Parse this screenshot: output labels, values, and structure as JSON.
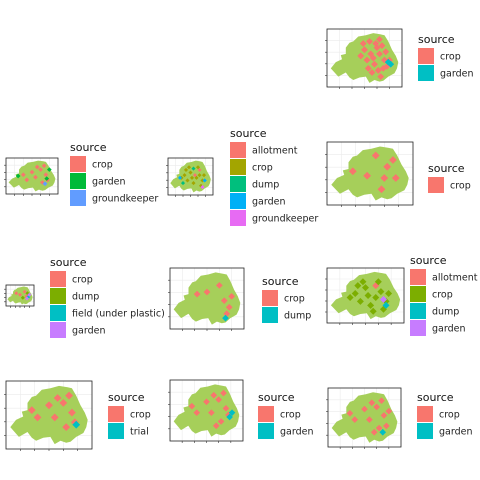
{
  "chart_data": [
    {
      "type": "scatter",
      "legend": {
        "title": "source",
        "entries": [
          {
            "label": "crop",
            "color": "#F8766D"
          },
          {
            "label": "garden",
            "color": "#00BFC4"
          }
        ]
      },
      "series": [
        {
          "name": "crop",
          "points": [
            [
              -6.1,
              54.95
            ],
            [
              -6.2,
              55.1
            ],
            [
              -6.55,
              54.75
            ],
            [
              -6.0,
              54.6
            ],
            [
              -6.4,
              54.5
            ],
            [
              -6.8,
              54.85
            ],
            [
              -6.25,
              54.35
            ],
            [
              -5.9,
              54.45
            ],
            [
              -6.6,
              55.05
            ],
            [
              -6.95,
              54.7
            ],
            [
              -6.3,
              54.9
            ],
            [
              -5.95,
              54.8
            ],
            [
              -6.45,
              54.65
            ],
            [
              -6.15,
              54.2
            ],
            [
              -6.7,
              54.6
            ],
            [
              -6.05,
              54.4
            ],
            [
              -6.35,
              55.0
            ],
            [
              -6.85,
              55.0
            ],
            [
              -6.5,
              54.3
            ],
            [
              -5.8,
              54.6
            ],
            [
              -6.2,
              54.75
            ],
            [
              -6.65,
              54.4
            ]
          ]
        },
        {
          "name": "garden",
          "points": [
            [
              -5.85,
              54.55
            ],
            [
              -5.75,
              54.5
            ]
          ]
        }
      ]
    },
    {
      "type": "scatter",
      "legend": {
        "title": "source",
        "entries": [
          {
            "label": "crop",
            "color": "#F8766D"
          },
          {
            "label": "garden",
            "color": "#00BA38"
          },
          {
            "label": "groundkeeper",
            "color": "#619CFF"
          }
        ]
      },
      "series": [
        {
          "name": "crop",
          "points": [
            [
              -6.3,
              54.9
            ],
            [
              -6.0,
              54.7
            ],
            [
              -6.6,
              54.6
            ],
            [
              -6.8,
              54.8
            ],
            [
              -5.9,
              54.5
            ],
            [
              -6.2,
              54.4
            ],
            [
              -7.1,
              54.5
            ],
            [
              -6.5,
              55.0
            ],
            [
              -6.1,
              55.05
            ],
            [
              -7.3,
              54.7
            ]
          ]
        },
        {
          "name": "garden",
          "points": [
            [
              -7.6,
              54.65
            ],
            [
              -5.8,
              54.9
            ],
            [
              -5.95,
              54.55
            ]
          ]
        },
        {
          "name": "groundkeeper",
          "points": [
            [
              -6.05,
              54.35
            ]
          ]
        }
      ]
    },
    {
      "type": "scatter",
      "legend": {
        "title": "source",
        "entries": [
          {
            "label": "allotment",
            "color": "#F8766D"
          },
          {
            "label": "crop",
            "color": "#A3A500"
          },
          {
            "label": "dump",
            "color": "#00BF7D"
          },
          {
            "label": "garden",
            "color": "#00B0F6"
          },
          {
            "label": "groundkeeper",
            "color": "#E76BF3"
          }
        ]
      },
      "series": [
        {
          "name": "allotment",
          "points": [
            [
              -6.2,
              54.9
            ],
            [
              -6.5,
              54.7
            ]
          ]
        },
        {
          "name": "crop",
          "points": [
            [
              -7.2,
              54.7
            ],
            [
              -7.0,
              54.5
            ],
            [
              -6.8,
              54.8
            ],
            [
              -6.6,
              54.4
            ],
            [
              -6.4,
              54.6
            ],
            [
              -6.2,
              54.7
            ],
            [
              -6.0,
              54.5
            ],
            [
              -7.4,
              54.6
            ],
            [
              -6.9,
              55.0
            ],
            [
              -6.3,
              55.0
            ],
            [
              -6.1,
              54.3
            ],
            [
              -7.1,
              54.9
            ],
            [
              -6.7,
              54.6
            ],
            [
              -5.9,
              54.7
            ]
          ]
        },
        {
          "name": "dump",
          "points": [
            [
              -6.6,
              54.95
            ],
            [
              -7.3,
              54.4
            ]
          ]
        },
        {
          "name": "garden",
          "points": [
            [
              -7.5,
              54.6
            ],
            [
              -5.85,
              54.5
            ]
          ]
        },
        {
          "name": "groundkeeper",
          "points": [
            [
              -6.0,
              54.25
            ]
          ]
        }
      ]
    },
    {
      "type": "scatter",
      "legend": {
        "title": "source",
        "entries": [
          {
            "label": "crop",
            "color": "#F8766D"
          }
        ]
      },
      "series": [
        {
          "name": "crop",
          "points": [
            [
              -6.2,
              54.8
            ],
            [
              -6.9,
              54.6
            ],
            [
              -6.4,
              54.3
            ],
            [
              -6.0,
              54.95
            ],
            [
              -5.9,
              54.55
            ],
            [
              -7.4,
              54.7
            ],
            [
              -6.6,
              55.05
            ],
            [
              -6.3,
              54.55
            ]
          ]
        }
      ]
    },
    {
      "type": "scatter",
      "legend": {
        "title": "source",
        "entries": [
          {
            "label": "crop",
            "color": "#F8766D"
          },
          {
            "label": "dump",
            "color": "#7CAE00"
          },
          {
            "label": "field (under plastic)",
            "color": "#00BFC4"
          },
          {
            "label": "garden",
            "color": "#C77CFF"
          }
        ]
      },
      "series": [
        {
          "name": "crop",
          "points": [
            [
              -6.3,
              54.9
            ],
            [
              -6.8,
              54.7
            ],
            [
              -6.1,
              54.6
            ],
            [
              -7.2,
              54.8
            ]
          ]
        },
        {
          "name": "dump",
          "points": [
            [
              -6.5,
              54.5
            ],
            [
              -6.0,
              54.8
            ]
          ]
        },
        {
          "name": "field (under plastic)",
          "points": [
            [
              -5.9,
              54.55
            ]
          ]
        },
        {
          "name": "garden",
          "points": [
            [
              -5.8,
              54.7
            ],
            [
              -6.05,
              54.45
            ]
          ]
        }
      ]
    },
    {
      "type": "scatter",
      "legend": {
        "title": "source",
        "entries": [
          {
            "label": "crop",
            "color": "#F8766D"
          },
          {
            "label": "dump",
            "color": "#00BFC4"
          }
        ]
      },
      "series": [
        {
          "name": "crop",
          "points": [
            [
              -6.3,
              54.95
            ],
            [
              -6.1,
              54.6
            ],
            [
              -6.8,
              54.8
            ],
            [
              -5.9,
              54.45
            ],
            [
              -6.0,
              54.3
            ],
            [
              -5.8,
              54.7
            ],
            [
              -7.2,
              54.75
            ]
          ]
        },
        {
          "name": "dump",
          "points": [
            [
              -6.05,
              54.2
            ]
          ]
        }
      ]
    },
    {
      "type": "scatter",
      "legend": {
        "title": "source",
        "entries": [
          {
            "label": "allotment",
            "color": "#F8766D"
          },
          {
            "label": "crop",
            "color": "#7CAE00"
          },
          {
            "label": "dump",
            "color": "#00BFC4"
          },
          {
            "label": "garden",
            "color": "#C77CFF"
          }
        ]
      },
      "series": [
        {
          "name": "allotment",
          "points": [
            [
              -6.4,
              54.9
            ]
          ]
        },
        {
          "name": "crop",
          "points": [
            [
              -7.2,
              54.7
            ],
            [
              -7.0,
              54.5
            ],
            [
              -6.8,
              54.85
            ],
            [
              -6.6,
              54.4
            ],
            [
              -6.4,
              54.6
            ],
            [
              -6.2,
              54.75
            ],
            [
              -6.0,
              54.5
            ],
            [
              -7.4,
              54.6
            ],
            [
              -6.9,
              55.0
            ],
            [
              -6.3,
              55.0
            ],
            [
              -6.1,
              54.3
            ],
            [
              -7.1,
              54.9
            ],
            [
              -6.7,
              54.65
            ],
            [
              -5.9,
              54.7
            ],
            [
              -6.5,
              54.25
            ]
          ]
        },
        {
          "name": "dump",
          "points": [
            [
              -6.0,
              54.4
            ]
          ]
        },
        {
          "name": "garden",
          "points": [
            [
              -6.1,
              54.55
            ]
          ]
        }
      ]
    },
    {
      "type": "scatter",
      "legend": {
        "title": "source",
        "entries": [
          {
            "label": "crop",
            "color": "#F8766D"
          },
          {
            "label": "trial",
            "color": "#00BFC4"
          }
        ]
      },
      "series": [
        {
          "name": "crop",
          "points": [
            [
              -6.3,
              54.9
            ],
            [
              -6.0,
              54.7
            ],
            [
              -6.6,
              54.6
            ],
            [
              -6.8,
              54.85
            ],
            [
              -5.9,
              54.5
            ],
            [
              -6.2,
              54.4
            ],
            [
              -7.2,
              54.6
            ],
            [
              -6.5,
              55.0
            ],
            [
              -6.1,
              55.05
            ],
            [
              -7.4,
              54.75
            ]
          ]
        },
        {
          "name": "trial",
          "points": [
            [
              -5.85,
              54.45
            ]
          ]
        }
      ]
    },
    {
      "type": "scatter",
      "legend": {
        "title": "source",
        "entries": [
          {
            "label": "crop",
            "color": "#F8766D"
          },
          {
            "label": "garden",
            "color": "#00BFC4"
          }
        ]
      },
      "series": [
        {
          "name": "crop",
          "points": [
            [
              -6.3,
              54.9
            ],
            [
              -6.0,
              54.7
            ],
            [
              -6.6,
              54.6
            ],
            [
              -6.8,
              54.85
            ],
            [
              -6.2,
              54.4
            ],
            [
              -7.2,
              54.6
            ],
            [
              -6.5,
              55.0
            ],
            [
              -6.1,
              55.05
            ],
            [
              -7.4,
              54.75
            ],
            [
              -6.4,
              54.3
            ],
            [
              -5.9,
              54.55
            ]
          ]
        },
        {
          "name": "garden",
          "points": [
            [
              -5.75,
              54.6
            ],
            [
              -5.85,
              54.5
            ]
          ]
        }
      ]
    },
    {
      "type": "scatter",
      "legend": {
        "title": "source",
        "entries": [
          {
            "label": "crop",
            "color": "#F8766D"
          },
          {
            "label": "garden",
            "color": "#00BFC4"
          }
        ]
      },
      "series": [
        {
          "name": "crop",
          "points": [
            [
              -6.3,
              54.9
            ],
            [
              -6.0,
              54.7
            ],
            [
              -6.6,
              54.6
            ],
            [
              -6.8,
              54.85
            ],
            [
              -5.9,
              54.45
            ],
            [
              -6.2,
              54.4
            ],
            [
              -7.2,
              54.6
            ],
            [
              -6.5,
              55.0
            ],
            [
              -6.1,
              55.05
            ],
            [
              -7.4,
              54.75
            ],
            [
              -6.4,
              54.3
            ],
            [
              -5.8,
              54.8
            ]
          ]
        },
        {
          "name": "garden",
          "points": [
            [
              -6.05,
              54.3
            ]
          ]
        }
      ]
    }
  ],
  "map": {
    "land_color": "#A6CF5A",
    "panel_bg": "#ffffff",
    "gridline_color": "#ebebeb"
  }
}
